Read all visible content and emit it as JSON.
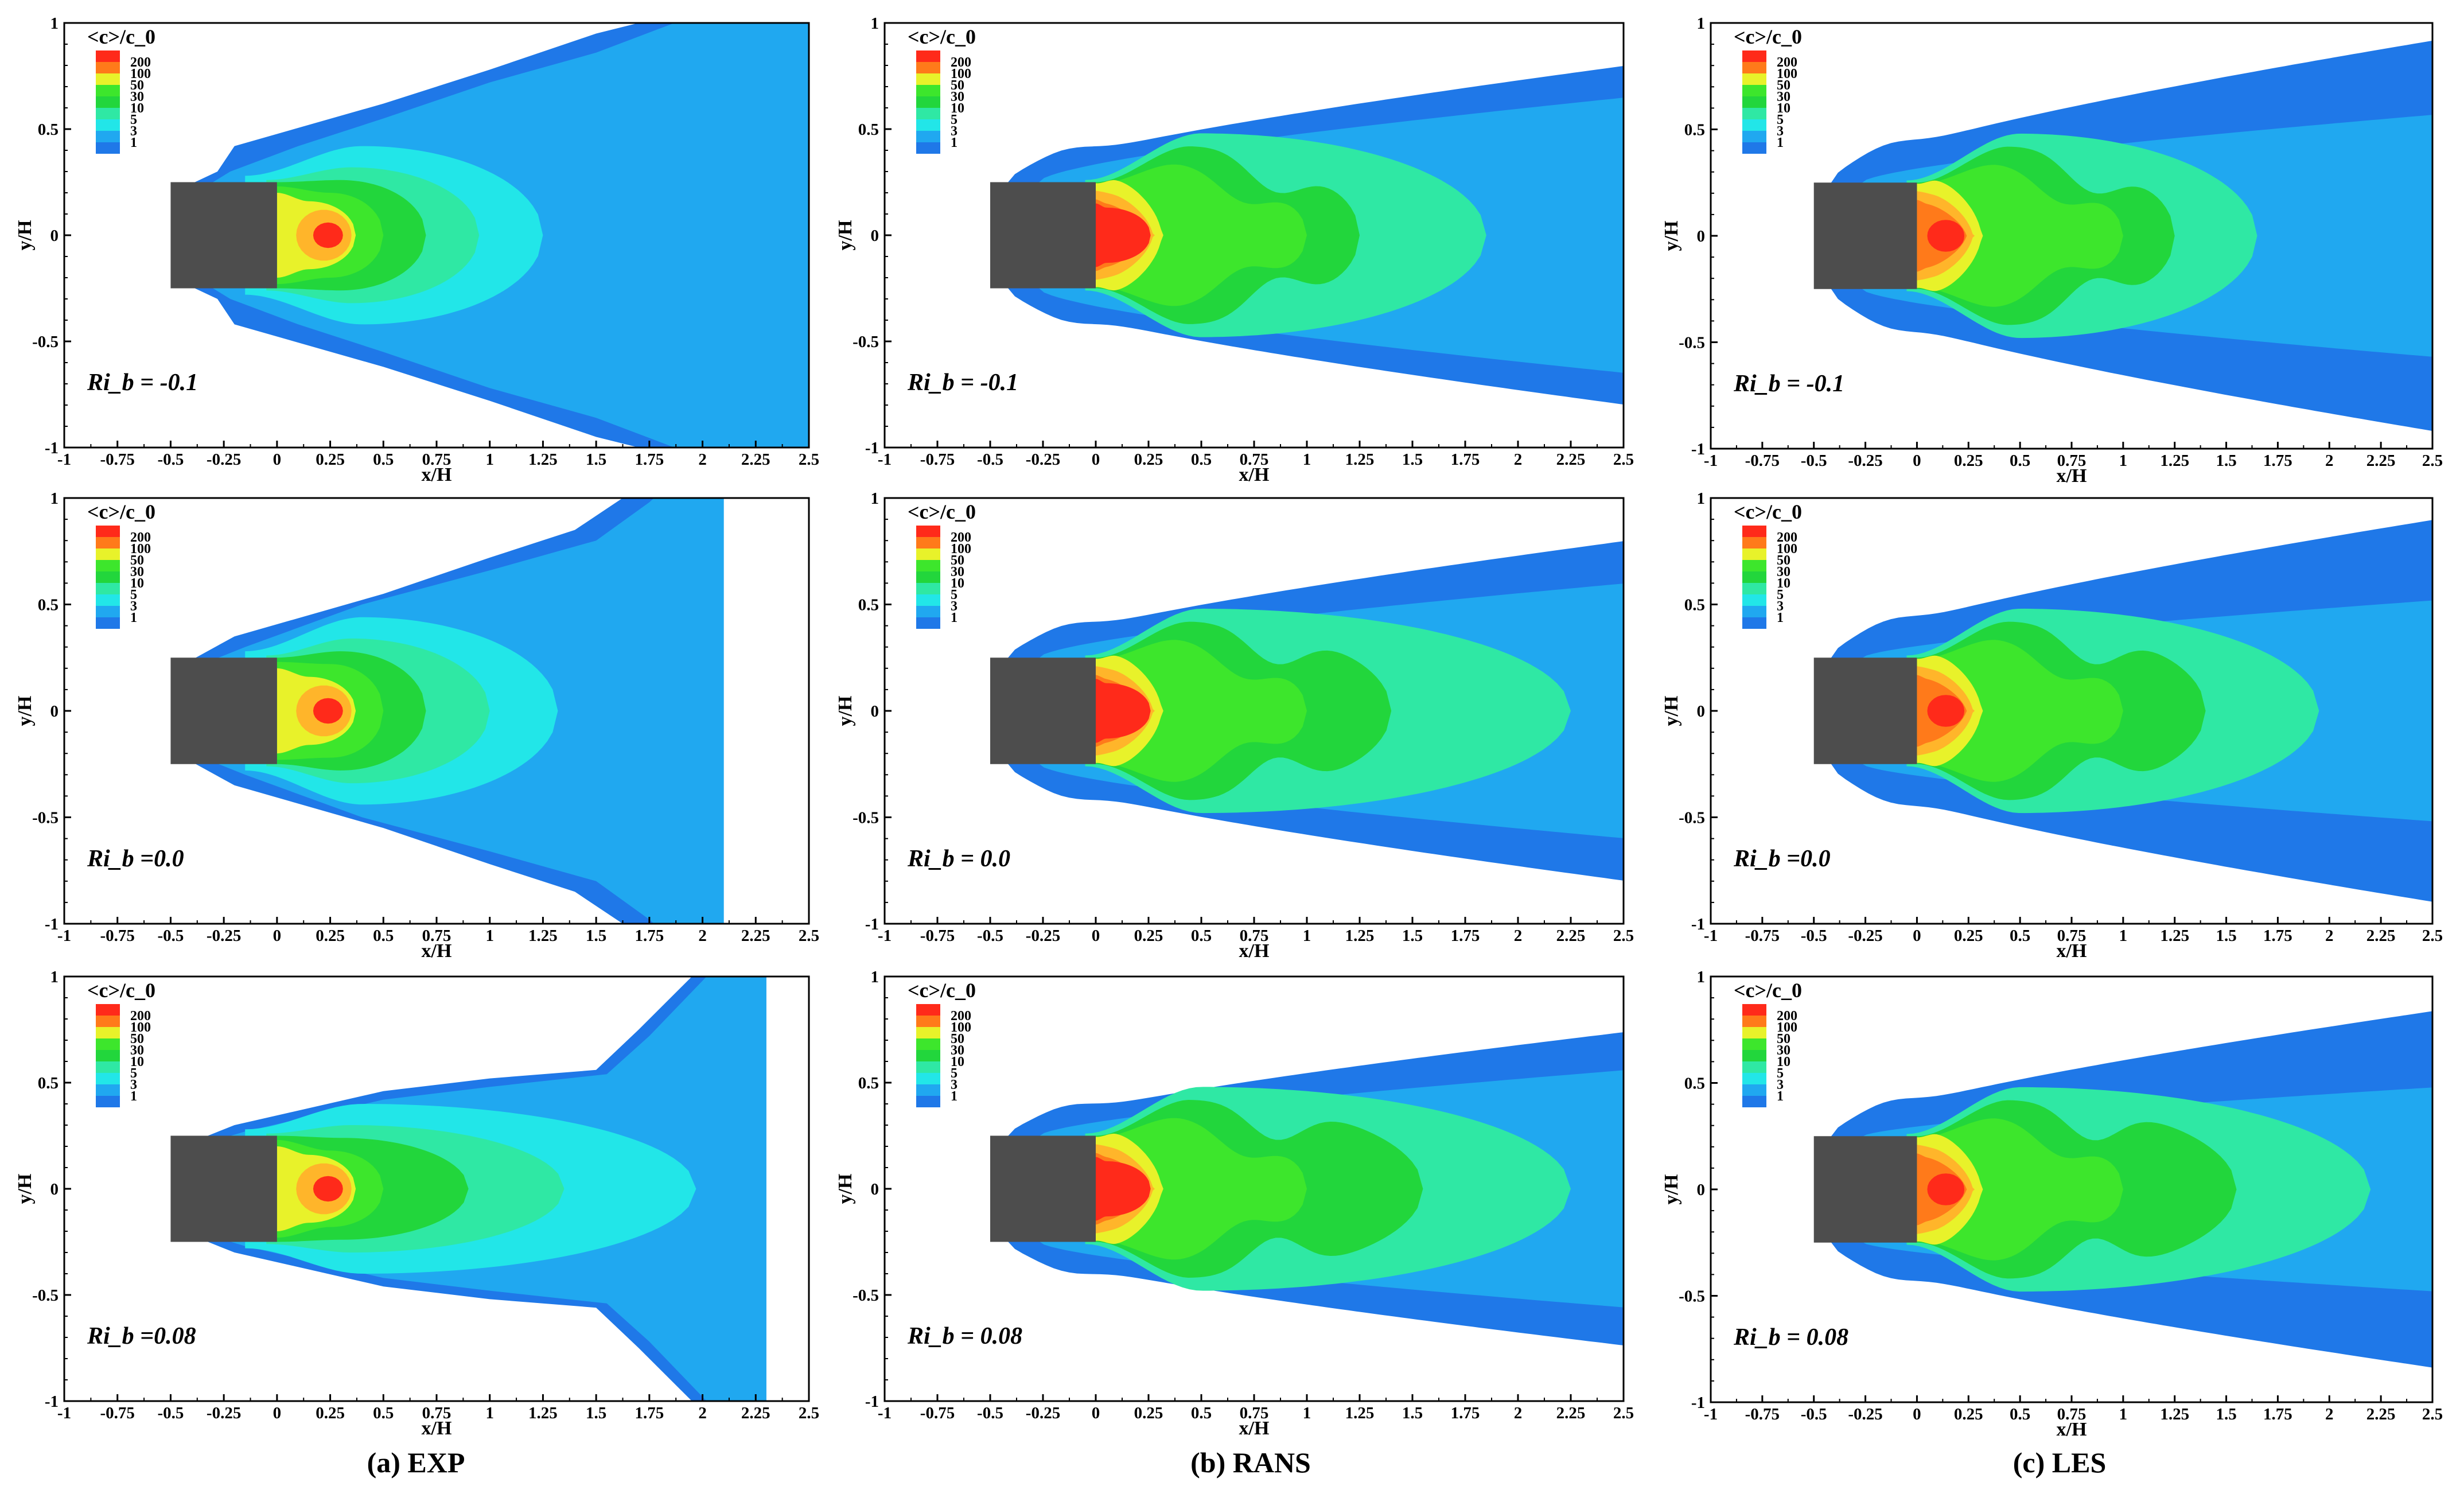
{
  "figure": {
    "columns": [
      {
        "caption": "(a) EXP"
      },
      {
        "caption": "(b) RANS"
      },
      {
        "caption": "(c) LES"
      }
    ]
  },
  "colors": {
    "levels": [
      "#1f78e8",
      "#20a8f0",
      "#22e6e8",
      "#2fe8a4",
      "#22d63c",
      "#3de62c",
      "#e8f22a",
      "#ffb52a",
      "#ff7a1a",
      "#ff2a1a"
    ],
    "obstacle": "#4d4d4d",
    "frame": "#000000"
  },
  "chart_data": [
    {
      "type": "contour",
      "column": "EXP",
      "ri_label": "Ri_b = -0.1",
      "ri_value": -0.1,
      "legend_title": "<c>/c_0",
      "legend_levels": [
        "200",
        "100",
        "50",
        "30",
        "10",
        "5",
        "3",
        "1"
      ],
      "xlabel": "x/H",
      "ylabel": "y/H",
      "xlim": [
        -1,
        2.5
      ],
      "ylim": [
        -1,
        1
      ],
      "xticks": [
        "-1",
        "-0.75",
        "-0.5",
        "-0.25",
        "0",
        "0.25",
        "0.5",
        "0.75",
        "1",
        "1.25",
        "1.5",
        "1.75",
        "2",
        "2.25",
        "2.5"
      ],
      "yticks": [
        "1",
        "0.5",
        "0",
        "-0.5",
        "-1"
      ],
      "obstacle": {
        "x": [
          -0.5,
          0
        ],
        "y": [
          -0.25,
          0.25
        ]
      }
    },
    {
      "type": "contour",
      "column": "RANS",
      "ri_label": "Ri_b = -0.1",
      "ri_value": -0.1,
      "legend_title": "<c>/c_0",
      "legend_levels": [
        "200",
        "100",
        "50",
        "30",
        "10",
        "5",
        "3",
        "1"
      ],
      "xlabel": "x/H",
      "ylabel": "y/H",
      "xlim": [
        -1,
        2.5
      ],
      "ylim": [
        -1,
        1
      ],
      "xticks": [
        "-1",
        "-0.75",
        "-0.5",
        "-0.25",
        "0",
        "0.25",
        "0.5",
        "0.75",
        "1",
        "1.25",
        "1.5",
        "1.75",
        "2",
        "2.25",
        "2.5"
      ],
      "yticks": [
        "1",
        "0.5",
        "0",
        "-0.5",
        "-1"
      ],
      "obstacle": {
        "x": [
          -0.5,
          0
        ],
        "y": [
          -0.25,
          0.25
        ]
      }
    },
    {
      "type": "contour",
      "column": "LES",
      "ri_label": "Ri_b = -0.1",
      "ri_value": -0.1,
      "legend_title": "<c>/c_0",
      "legend_levels": [
        "200",
        "100",
        "50",
        "30",
        "10",
        "5",
        "3",
        "1"
      ],
      "xlabel": "x/H",
      "ylabel": "y/H",
      "xlim": [
        -1,
        2.5
      ],
      "ylim": [
        -1,
        1
      ],
      "xticks": [
        "-1",
        "-0.75",
        "-0.5",
        "-0.25",
        "0",
        "0.25",
        "0.5",
        "0.75",
        "1",
        "1.25",
        "1.5",
        "1.75",
        "2",
        "2.25",
        "2.5"
      ],
      "yticks": [
        "1",
        "0.5",
        "0",
        "-0.5",
        "-1"
      ],
      "obstacle": {
        "x": [
          -0.5,
          0
        ],
        "y": [
          -0.25,
          0.25
        ]
      }
    },
    {
      "type": "contour",
      "column": "EXP",
      "ri_label": "Ri_b =0.0",
      "ri_value": 0.0,
      "legend_title": "<c>/c_0",
      "legend_levels": [
        "200",
        "100",
        "50",
        "30",
        "10",
        "5",
        "3",
        "1"
      ],
      "xlabel": "x/H",
      "ylabel": "y/H",
      "xlim": [
        -1,
        2.5
      ],
      "ylim": [
        -1,
        1
      ],
      "xticks": [
        "-1",
        "-0.75",
        "-0.5",
        "-0.25",
        "0",
        "0.25",
        "0.5",
        "0.75",
        "1",
        "1.25",
        "1.5",
        "1.75",
        "2",
        "2.25",
        "2.5"
      ],
      "yticks": [
        "1",
        "0.5",
        "0",
        "-0.5",
        "-1"
      ],
      "obstacle": {
        "x": [
          -0.5,
          0
        ],
        "y": [
          -0.25,
          0.25
        ]
      }
    },
    {
      "type": "contour",
      "column": "RANS",
      "ri_label": "Ri_b = 0.0",
      "ri_value": 0.0,
      "legend_title": "<c>/c_0",
      "legend_levels": [
        "200",
        "100",
        "50",
        "30",
        "10",
        "5",
        "3",
        "1"
      ],
      "xlabel": "x/H",
      "ylabel": "y/H",
      "xlim": [
        -1,
        2.5
      ],
      "ylim": [
        -1,
        1
      ],
      "xticks": [
        "-1",
        "-0.75",
        "-0.5",
        "-0.25",
        "0",
        "0.25",
        "0.5",
        "0.75",
        "1",
        "1.25",
        "1.5",
        "1.75",
        "2",
        "2.25",
        "2.5"
      ],
      "yticks": [
        "1",
        "0.5",
        "0",
        "-0.5",
        "-1"
      ],
      "obstacle": {
        "x": [
          -0.5,
          0
        ],
        "y": [
          -0.25,
          0.25
        ]
      }
    },
    {
      "type": "contour",
      "column": "LES",
      "ri_label": "Ri_b =0.0",
      "ri_value": 0.0,
      "legend_title": "<c>/c_0",
      "legend_levels": [
        "200",
        "100",
        "50",
        "30",
        "10",
        "5",
        "3",
        "1"
      ],
      "xlabel": "x/H",
      "ylabel": "y/H",
      "xlim": [
        -1,
        2.5
      ],
      "ylim": [
        -1,
        1
      ],
      "xticks": [
        "-1",
        "-0.75",
        "-0.5",
        "-0.25",
        "0",
        "0.25",
        "0.5",
        "0.75",
        "1",
        "1.25",
        "1.5",
        "1.75",
        "2",
        "2.25",
        "2.5"
      ],
      "yticks": [
        "1",
        "0.5",
        "0",
        "-0.5",
        "-1"
      ],
      "obstacle": {
        "x": [
          -0.5,
          0
        ],
        "y": [
          -0.25,
          0.25
        ]
      }
    },
    {
      "type": "contour",
      "column": "EXP",
      "ri_label": "Ri_b =0.08",
      "ri_value": 0.08,
      "legend_title": "<c>/c_0",
      "legend_levels": [
        "200",
        "100",
        "50",
        "30",
        "10",
        "5",
        "3",
        "1"
      ],
      "xlabel": "x/H",
      "ylabel": "y/H",
      "xlim": [
        -1,
        2.5
      ],
      "ylim": [
        -1,
        1
      ],
      "xticks": [
        "-1",
        "-0.75",
        "-0.5",
        "-0.25",
        "0",
        "0.25",
        "0.5",
        "0.75",
        "1",
        "1.25",
        "1.5",
        "1.75",
        "2",
        "2.25",
        "2.5"
      ],
      "yticks": [
        "1",
        "0.5",
        "0",
        "-0.5",
        "-1"
      ],
      "obstacle": {
        "x": [
          -0.5,
          0
        ],
        "y": [
          -0.25,
          0.25
        ]
      }
    },
    {
      "type": "contour",
      "column": "RANS",
      "ri_label": "Ri_b = 0.08",
      "ri_value": 0.08,
      "legend_title": "<c>/c_0",
      "legend_levels": [
        "200",
        "100",
        "50",
        "30",
        "10",
        "5",
        "3",
        "1"
      ],
      "xlabel": "x/H",
      "ylabel": "y/H",
      "xlim": [
        -1,
        2.5
      ],
      "ylim": [
        -1,
        1
      ],
      "xticks": [
        "-1",
        "-0.75",
        "-0.5",
        "-0.25",
        "0",
        "0.25",
        "0.5",
        "0.75",
        "1",
        "1.25",
        "1.5",
        "1.75",
        "2",
        "2.25",
        "2.5"
      ],
      "yticks": [
        "1",
        "0.5",
        "0",
        "-0.5",
        "-1"
      ],
      "obstacle": {
        "x": [
          -0.5,
          0
        ],
        "y": [
          -0.25,
          0.25
        ]
      }
    },
    {
      "type": "contour",
      "column": "LES",
      "ri_label": "Ri_b = 0.08",
      "ri_value": 0.08,
      "legend_title": "<c>/c_0",
      "legend_levels": [
        "200",
        "100",
        "50",
        "30",
        "10",
        "5",
        "3",
        "1"
      ],
      "xlabel": "x/H",
      "ylabel": "y/H",
      "xlim": [
        -1,
        2.5
      ],
      "ylim": [
        -1,
        1
      ],
      "xticks": [
        "-1",
        "-0.75",
        "-0.5",
        "-0.25",
        "0",
        "0.25",
        "0.5",
        "0.75",
        "1",
        "1.25",
        "1.5",
        "1.75",
        "2",
        "2.25",
        "2.5"
      ],
      "yticks": [
        "1",
        "0.5",
        "0",
        "-0.5",
        "-1"
      ],
      "obstacle": {
        "x": [
          -0.5,
          0
        ],
        "y": [
          -0.25,
          0.25
        ]
      }
    }
  ]
}
